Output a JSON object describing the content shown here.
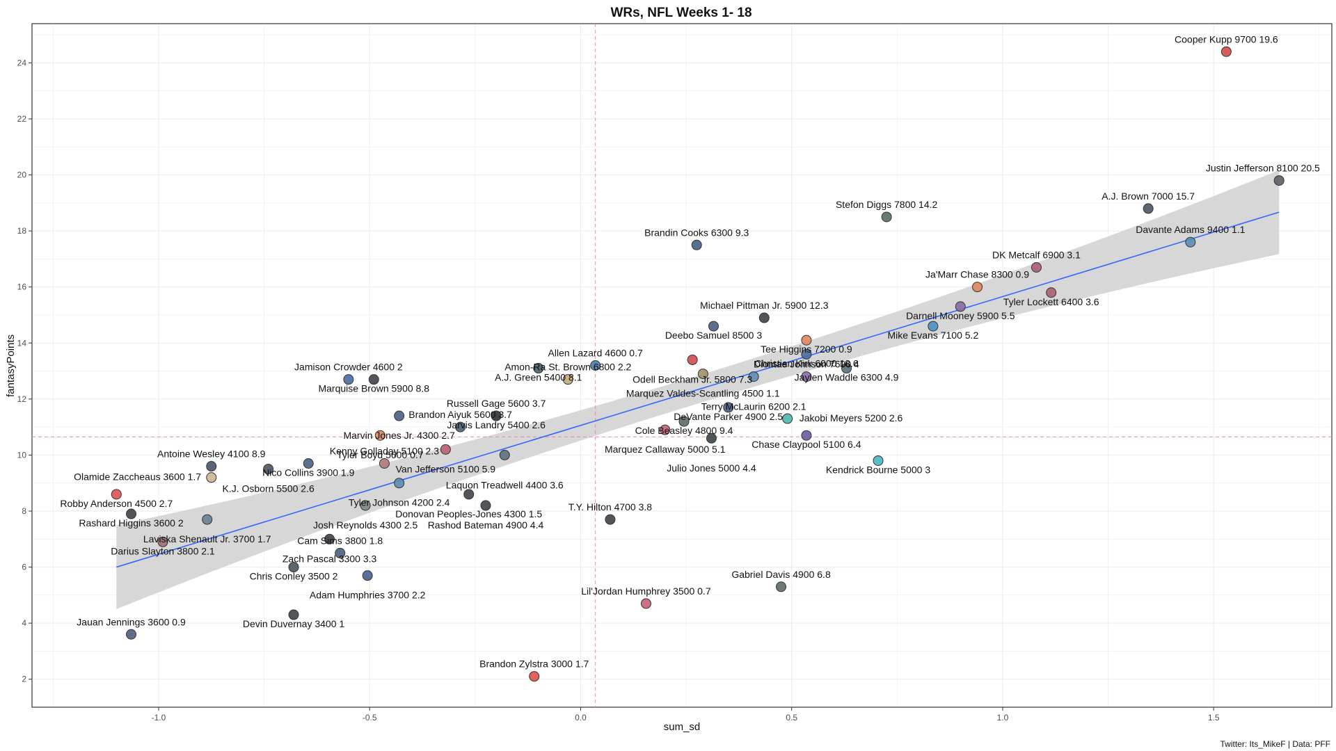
{
  "chart_data": {
    "type": "scatter",
    "title": "WRs, NFL Weeks 1- 18",
    "xlabel": "sum_sd",
    "ylabel": "fantasyPoints",
    "caption": "Twitter: Its_MikeF | Data: PFF",
    "xlim": [
      -1.3,
      1.78
    ],
    "ylim": [
      1.0,
      25.4
    ],
    "x_ticks": [
      -1.0,
      -0.5,
      0.0,
      0.5,
      1.0,
      1.5
    ],
    "x_tick_labels": [
      "-1.0",
      "-0.5",
      "0.0",
      "0.5",
      "1.0",
      "1.5"
    ],
    "y_ticks": [
      2,
      4,
      6,
      8,
      10,
      12,
      14,
      16,
      18,
      20,
      22,
      24
    ],
    "y_tick_labels": [
      "2",
      "4",
      "6",
      "8",
      "10",
      "12",
      "14",
      "16",
      "18",
      "20",
      "22",
      "24"
    ],
    "grid": true,
    "reference_lines": {
      "x": 0.035,
      "y": 10.65,
      "color": "#e8888f"
    },
    "trend_line": {
      "x": [
        -1.1,
        1.655
      ],
      "y": [
        6.0,
        18.67
      ],
      "color": "#3366ff",
      "band_color": "#d3d3d3"
    },
    "points": [
      {
        "label": "Cooper Kupp 9700 19.6",
        "x": 1.53,
        "y": 24.4,
        "color": "#d24b4b"
      },
      {
        "label": "Justin Jefferson 8100 20.5",
        "x": 1.655,
        "y": 19.8,
        "color": "#5a5f66"
      },
      {
        "label": "A.J. Brown 7000 15.7",
        "x": 1.345,
        "y": 18.8,
        "color": "#4a5560"
      },
      {
        "label": "Stefon Diggs 7800 14.2",
        "x": 0.725,
        "y": 18.5,
        "color": "#5c6b60"
      },
      {
        "label": "Brandin Cooks 6300 9.3",
        "x": 0.275,
        "y": 17.5,
        "color": "#4a5f80"
      },
      {
        "label": "Davante Adams 9400 1.1",
        "x": 1.445,
        "y": 17.6,
        "color": "#5b8db5"
      },
      {
        "label": "DK Metcalf 6900 3.1",
        "x": 1.08,
        "y": 16.7,
        "color": "#a86070"
      },
      {
        "label": "Ja'Marr Chase 8300 0.9",
        "x": 0.94,
        "y": 16.0,
        "color": "#e0875c"
      },
      {
        "label": "Tyler Lockett 6400 3.6",
        "x": 1.115,
        "y": 15.8,
        "color": "#a86070"
      },
      {
        "label": "Darnell Mooney 5900 5.5",
        "x": 0.9,
        "y": 15.3,
        "color": "#8a6aa8"
      },
      {
        "label": "Michael Pittman Jr. 5900 12.3",
        "x": 0.435,
        "y": 14.9,
        "color": "#3f4448"
      },
      {
        "label": "Deebo Samuel 8500 3",
        "x": 0.315,
        "y": 14.6,
        "color": "#4a5f80"
      },
      {
        "label": "Mike Evans 7100 5.2",
        "x": 0.835,
        "y": 14.6,
        "color": "#4b90c4"
      },
      {
        "label": "Tee Higgins 7200 0.9",
        "x": 0.535,
        "y": 14.1,
        "color": "#e0875c"
      },
      {
        "label": "Christian Kirk 6000 18.6",
        "x": 0.535,
        "y": 13.6,
        "color": "#4b6aa0"
      },
      {
        "label": "Odell Beckham Jr. 5800 7.3",
        "x": 0.265,
        "y": 13.4,
        "color": "#d24b4b"
      },
      {
        "label": "Allen Lazard 4600 0.7",
        "x": 0.035,
        "y": 13.2,
        "color": "#4b7ba8"
      },
      {
        "label": "Jaylen Waddle 6300 4.9",
        "x": 0.63,
        "y": 13.1,
        "color": "#5f6f78"
      },
      {
        "label": "A.J. Green 5400 8.1",
        "x": -0.1,
        "y": 13.1,
        "color": "#4a6070"
      },
      {
        "label": "Marquez Valdes-Scantling 4500 1.1",
        "x": 0.29,
        "y": 12.9,
        "color": "#a08f6a"
      },
      {
        "label": "Amon-Ra St. Brown 6800 2.2",
        "x": -0.03,
        "y": 12.7,
        "color": "#c8a87a"
      },
      {
        "label": "Terry McLaurin 6200 2.1",
        "x": 0.41,
        "y": 12.8,
        "color": "#5b8db5"
      },
      {
        "label": "Diontae Johnson 7600 4",
        "x": 0.535,
        "y": 12.8,
        "color": "#8a6aa8"
      },
      {
        "label": "Jamison Crowder 4600 2",
        "x": -0.55,
        "y": 12.7,
        "color": "#4b6aa0"
      },
      {
        "label": "Marquise Brown 5900 8.8",
        "x": -0.49,
        "y": 12.7,
        "color": "#3f4448"
      },
      {
        "label": "Russell Gage 5600 3.7",
        "x": -0.2,
        "y": 11.4,
        "color": "#3f4448"
      },
      {
        "label": "Jarvis Landry 5400 2.6",
        "x": -0.2,
        "y": 11.4,
        "color": "#3f4448"
      },
      {
        "label": "Marvin Jones Jr. 4300 2.7",
        "x": -0.43,
        "y": 11.4,
        "color": "#4a5f80"
      },
      {
        "label": "DeVante Parker 4900 2.5",
        "x": 0.35,
        "y": 11.7,
        "color": "#4a5f80"
      },
      {
        "label": "Cole Beasley 4800 9.4",
        "x": 0.245,
        "y": 11.2,
        "color": "#5c6b60"
      },
      {
        "label": "Jakobi Meyers 5200 2.6",
        "x": 0.49,
        "y": 11.3,
        "color": "#4bb5b0"
      },
      {
        "label": "Brandon Aiyuk 5600 3.7",
        "x": -0.285,
        "y": 11.0,
        "color": "#4a5f70"
      },
      {
        "label": "Marquez Callaway 5000 5.1",
        "x": 0.2,
        "y": 10.9,
        "color": "#c86075"
      },
      {
        "label": "Tyler Boyd 5600 0.7",
        "x": -0.475,
        "y": 10.7,
        "color": "#e0875c"
      },
      {
        "label": "Julio Jones 5000 4.4",
        "x": 0.31,
        "y": 10.6,
        "color": "#3f4448"
      },
      {
        "label": "Chase Claypool 5100 6.4",
        "x": 0.535,
        "y": 10.7,
        "color": "#6a5aa0"
      },
      {
        "label": "Van Jefferson 5100 5.9",
        "x": -0.32,
        "y": 10.2,
        "color": "#b86070"
      },
      {
        "label": "Laquon Treadwell 4400 3.6",
        "x": -0.18,
        "y": 10.0,
        "color": "#5a7080"
      },
      {
        "label": "Kenny Golladay 5100 2.3",
        "x": -0.465,
        "y": 9.7,
        "color": "#b07878"
      },
      {
        "label": "Antoine Wesley 4100 8.9",
        "x": -0.875,
        "y": 9.6,
        "color": "#4a5560"
      },
      {
        "label": "Nico Collins 3900 1.9",
        "x": -0.645,
        "y": 9.7,
        "color": "#4a5f80"
      },
      {
        "label": "K.J. Osborn 5500 2.6",
        "x": -0.74,
        "y": 9.5,
        "color": "#4a5560"
      },
      {
        "label": "Kendrick Bourne 5000 3",
        "x": 0.705,
        "y": 9.8,
        "color": "#4bb5c0"
      },
      {
        "label": "Tyler Johnson 4200 2.4",
        "x": -0.43,
        "y": 9.0,
        "color": "#5b8db5"
      },
      {
        "label": "Olamide Zaccheaus 3600 1.7",
        "x": -0.875,
        "y": 9.2,
        "color": "#c8b890"
      },
      {
        "label": "Robby Anderson 4500 2.7",
        "x": -1.1,
        "y": 8.6,
        "color": "#e05050"
      },
      {
        "label": "Donovan Peoples-Jones 4300 1.5",
        "x": -0.265,
        "y": 8.6,
        "color": "#3f4448"
      },
      {
        "label": "Rashod Bateman 4900 4.4",
        "x": -0.225,
        "y": 8.2,
        "color": "#3f4448"
      },
      {
        "label": "Josh Reynolds 4300 2.5",
        "x": -0.51,
        "y": 8.2,
        "color": "#7a8a80"
      },
      {
        "label": "Rashard Higgins 3600 2",
        "x": -1.065,
        "y": 7.9,
        "color": "#3f4448"
      },
      {
        "label": "T.Y. Hilton 4700 3.8",
        "x": 0.07,
        "y": 7.7,
        "color": "#3f4448"
      },
      {
        "label": "Laviska Shenault Jr. 3700 1.7",
        "x": -0.885,
        "y": 7.7,
        "color": "#6a8090"
      },
      {
        "label": "Zach Pascal 3300 3.3",
        "x": -0.595,
        "y": 7.0,
        "color": "#3f4448"
      },
      {
        "label": "Darius Slayton 3800 2.1",
        "x": -0.99,
        "y": 6.9,
        "color": "#9a7075"
      },
      {
        "label": "Cam Sims 3800 1.8",
        "x": -0.57,
        "y": 6.5,
        "color": "#4a5f80"
      },
      {
        "label": "Chris Conley 3500 2",
        "x": -0.68,
        "y": 6.0,
        "color": "#4a5560"
      },
      {
        "label": "Adam Humphries 3700 2.2",
        "x": -0.505,
        "y": 5.7,
        "color": "#4a5f90"
      },
      {
        "label": "Gabriel Davis 4900 6.8",
        "x": 0.475,
        "y": 5.3,
        "color": "#5c6b60"
      },
      {
        "label": "Lil'Jordan Humphrey 3500 0.7",
        "x": 0.155,
        "y": 4.7,
        "color": "#c86075"
      },
      {
        "label": "Devin Duvernay 3400 1",
        "x": -0.68,
        "y": 4.3,
        "color": "#3f4448"
      },
      {
        "label": "Jauan Jennings 3600 0.9",
        "x": -1.065,
        "y": 3.6,
        "color": "#4a5f80"
      },
      {
        "label": "Brandon Zylstra 3000 1.7",
        "x": -0.11,
        "y": 2.1,
        "color": "#e05050"
      }
    ]
  }
}
